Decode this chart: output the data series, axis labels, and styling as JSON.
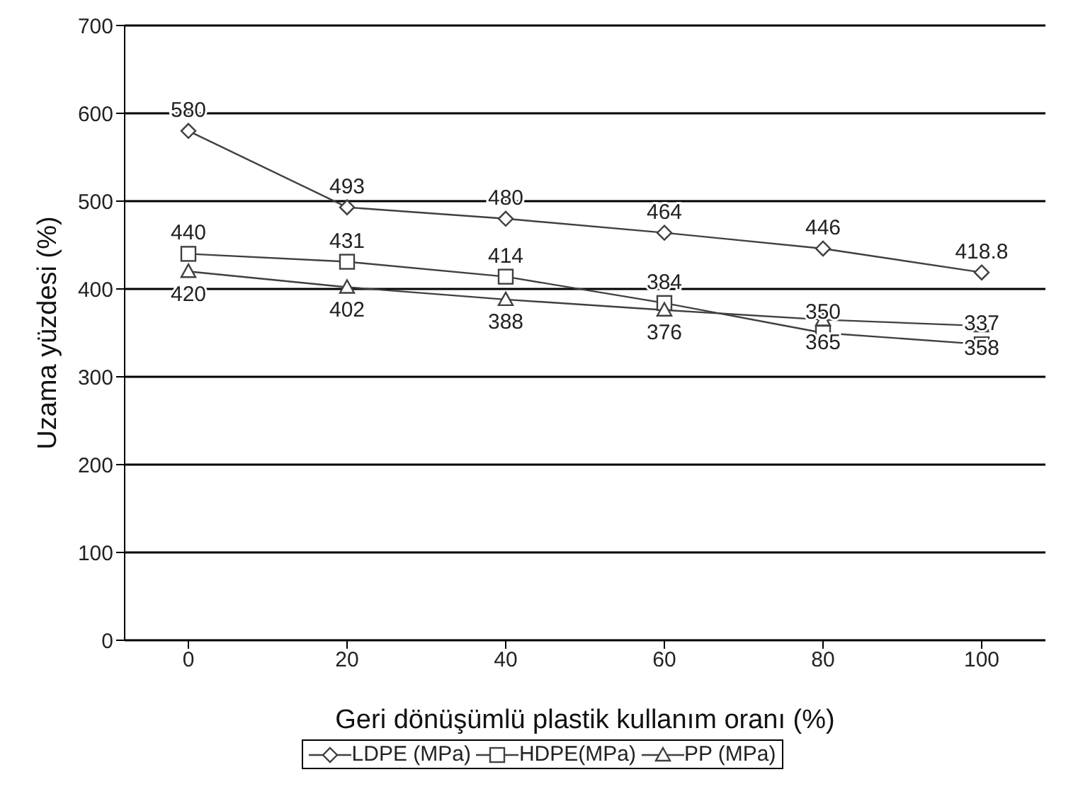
{
  "chart_data": {
    "type": "line",
    "xlabel": "Geri dönüşümlü plastik kullanım oranı (%)",
    "ylabel": "Uzama yüzdesi (%)",
    "categories": [
      "0",
      "20",
      "40",
      "60",
      "80",
      "100"
    ],
    "series": [
      {
        "name": "LDPE (MPa)",
        "color": "#404040",
        "marker": "diamond",
        "values": [
          580,
          493,
          480,
          464,
          446,
          418.8
        ]
      },
      {
        "name": "HDPE(MPa)",
        "color": "#404040",
        "marker": "square",
        "values": [
          440,
          431,
          414,
          384,
          350,
          337
        ]
      },
      {
        "name": "PP (MPa)",
        "color": "#404040",
        "marker": "triangle",
        "values": [
          420,
          402,
          388,
          376,
          365,
          358
        ]
      }
    ],
    "ylim": [
      0,
      700
    ],
    "yticks": [
      0,
      100,
      200,
      300,
      400,
      500,
      600,
      700
    ],
    "grid": "y",
    "legend": "bottom",
    "data_labels": true
  }
}
